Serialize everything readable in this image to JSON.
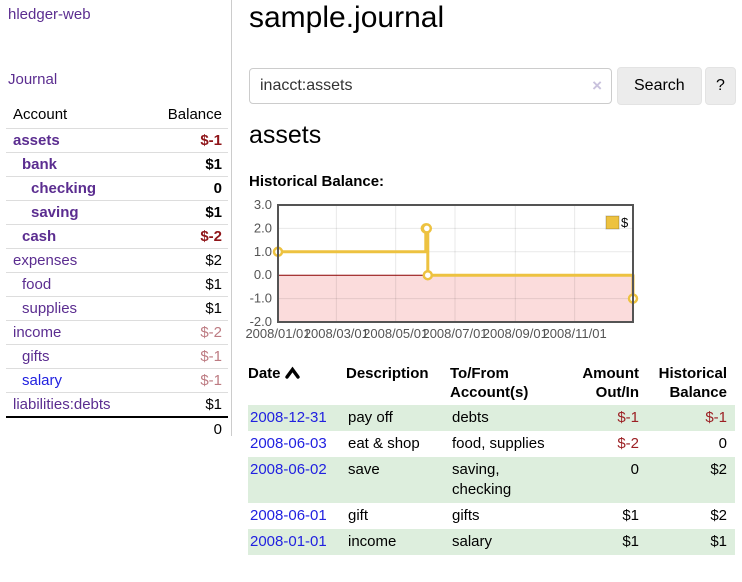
{
  "brand": "hledger-web",
  "nav": {
    "journal": "Journal"
  },
  "sidebar": {
    "columns": {
      "account": "Account",
      "balance": "Balance"
    },
    "accounts": [
      {
        "name": "assets",
        "level": 0,
        "bold": true,
        "balance": "$-1"
      },
      {
        "name": "bank",
        "level": 1,
        "bold": true,
        "balance": "$1"
      },
      {
        "name": "checking",
        "level": 2,
        "bold": true,
        "balance": "0"
      },
      {
        "name": "saving",
        "level": 2,
        "bold": true,
        "balance": "$1"
      },
      {
        "name": "cash",
        "level": 1,
        "bold": true,
        "balance": "$-2"
      },
      {
        "name": "expenses",
        "level": 0,
        "bold": false,
        "balance": "$2"
      },
      {
        "name": "food",
        "level": 1,
        "bold": false,
        "balance": "$1"
      },
      {
        "name": "supplies",
        "level": 1,
        "bold": false,
        "balance": "$1"
      },
      {
        "name": "income",
        "level": 0,
        "bold": false,
        "balance": "$-2"
      },
      {
        "name": "gifts",
        "level": 1,
        "bold": false,
        "balance": "$-1"
      },
      {
        "name": "salary",
        "level": 1,
        "bold": false,
        "balance": "$-1",
        "link_color": "#2121e0"
      },
      {
        "name": "liabilities:debts",
        "level": 0,
        "bold": false,
        "balance": "$1"
      }
    ],
    "total": "0"
  },
  "header": {
    "title": "sample.journal"
  },
  "search": {
    "value": "inacct:assets",
    "clear_icon": "×",
    "search_button": "Search",
    "help_button": "?"
  },
  "account_page": {
    "heading": "assets",
    "section_label": "Historical Balance:"
  },
  "chart_data": {
    "type": "line",
    "step": true,
    "title": "Historical Balance:",
    "series": [
      {
        "name": "$",
        "color": "#edc240",
        "points": [
          [
            "2008-01-01",
            1
          ],
          [
            "2008-06-01",
            2
          ],
          [
            "2008-06-02",
            2
          ],
          [
            "2008-06-03",
            0
          ],
          [
            "2008-12-31",
            -1
          ]
        ]
      }
    ],
    "x_domain": [
      "2008-01-01",
      "2008-12-31"
    ],
    "ylim": [
      -2,
      3
    ],
    "x_ticks": [
      "2008/01/01",
      "2008/03/01",
      "2008/05/01",
      "2008/07/01",
      "2008/09/01",
      "2008/11/01"
    ],
    "y_ticks": [
      "3.0",
      "2.0",
      "1.0",
      "0.0",
      "-1.0",
      "-2.0"
    ],
    "legend_position": "top-right",
    "grid": true,
    "negative_region_color": "#fbdcdc",
    "zero_line_color": "#8b0000",
    "border_color": "#545454",
    "tick_label_color": "#545454"
  },
  "register": {
    "columns": [
      "Date",
      "Description",
      "To/From Account(s)",
      "Amount Out/In",
      "Historical Balance"
    ],
    "sort": "asc",
    "rows": [
      {
        "date": "2008-12-31",
        "description": "pay off",
        "accounts": "debts",
        "amount": "$-1",
        "balance": "$-1"
      },
      {
        "date": "2008-06-03",
        "description": "eat & shop",
        "accounts": "food, supplies",
        "amount": "$-2",
        "balance": "0"
      },
      {
        "date": "2008-06-02",
        "description": "save",
        "accounts": "saving, checking",
        "amount": "0",
        "balance": "$2"
      },
      {
        "date": "2008-06-01",
        "description": "gift",
        "accounts": "gifts",
        "amount": "$1",
        "balance": "$2"
      },
      {
        "date": "2008-01-01",
        "description": "income",
        "accounts": "salary",
        "amount": "$1",
        "balance": "$1"
      }
    ]
  },
  "colors": {
    "brand_purple": "#5b2d90",
    "link_blue": "#2121e0",
    "negative_strong": "#8f1519",
    "negative_soft": "#bd7b82",
    "negative_register": "#9c2024",
    "row_green": "#ddeedd"
  }
}
